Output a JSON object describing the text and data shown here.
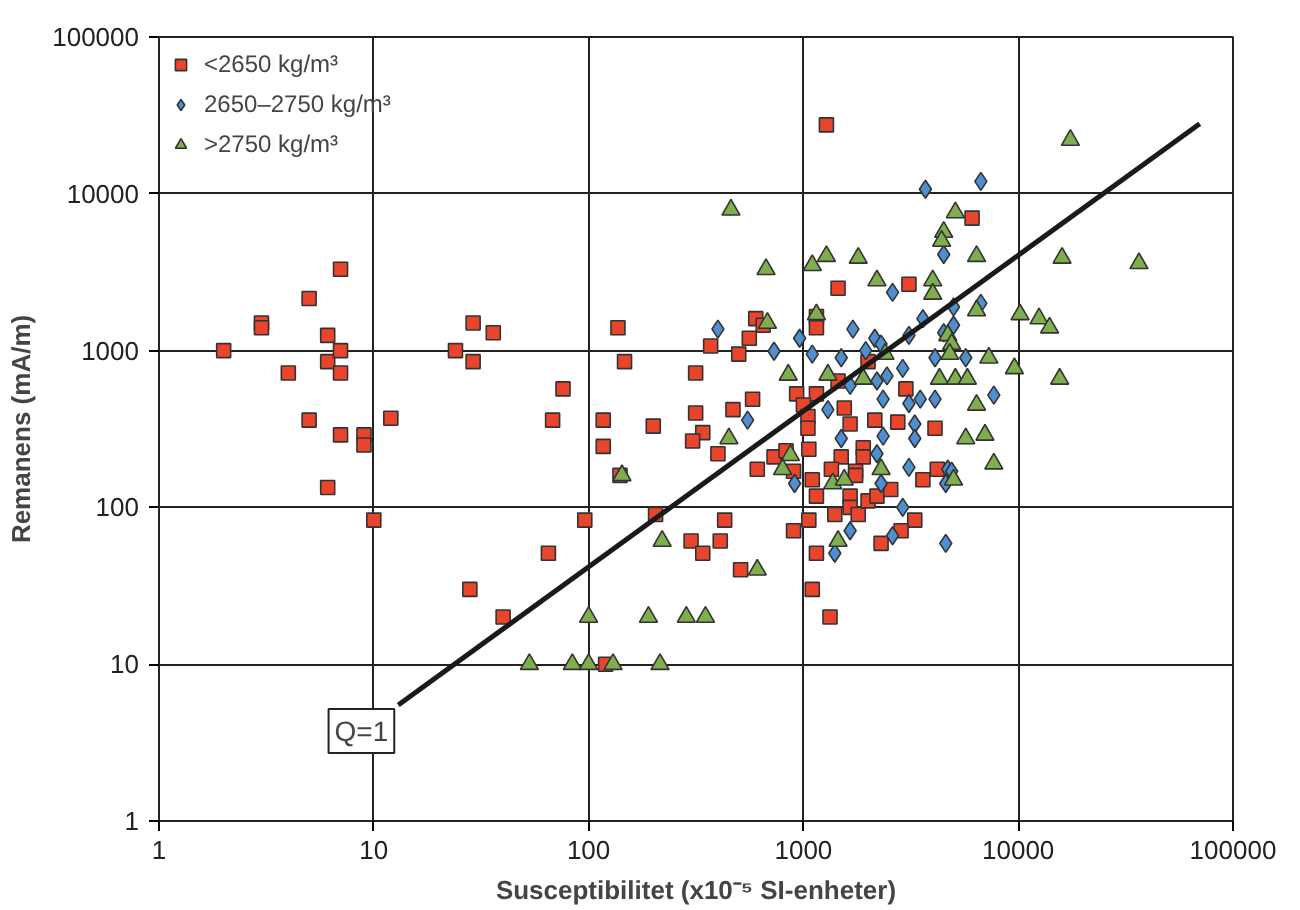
{
  "chart_data": {
    "type": "scatter",
    "xlabel": "Susceptibilitet (x10⁻⁵ SI-enheter)",
    "ylabel": "Remanens (mA/m)",
    "log": "xy",
    "grid": true,
    "legend": "top left",
    "xlim": [
      1,
      100000
    ],
    "ylim": [
      1,
      100000
    ],
    "xticks": [
      1,
      10,
      100,
      1000,
      10000,
      100000
    ],
    "yticks": [
      1,
      10,
      100,
      1000,
      10000,
      100000
    ],
    "annotations": [
      {
        "text": "Q=1",
        "x": 13,
        "y": 5.5
      }
    ],
    "series": [
      {
        "name": "<2650 kg/m³",
        "color": "#e8452c",
        "marker": "square",
        "x": [
          2,
          3,
          3,
          4,
          5,
          6.1,
          6.1,
          7,
          7,
          7,
          5,
          7,
          9,
          9,
          12,
          24,
          29,
          29,
          36,
          76,
          68,
          117,
          117,
          137,
          147,
          6.1,
          10,
          28,
          40,
          65,
          96,
          120,
          140,
          1280,
          6100,
          1450,
          3100,
          600,
          650,
          560,
          370,
          500,
          1150,
          1150,
          2000,
          930,
          1150,
          1450,
          3000,
          580,
          470,
          1000,
          1550,
          315,
          200,
          340,
          1050,
          1050,
          1650,
          2150,
          2750,
          4100,
          305,
          400,
          1060,
          730,
          830,
          1500,
          1900,
          1900,
          610,
          900,
          1350,
          1750,
          4200,
          315,
          1100,
          1750,
          1150,
          1650,
          1650,
          1800,
          1400,
          1060,
          2000,
          2200,
          2550,
          3600,
          3300,
          2850,
          2300,
          1150,
          1100,
          1330,
          900,
          430,
          205,
          300,
          340,
          410,
          510
        ],
        "values": [
          1000,
          1500,
          1400,
          720,
          2150,
          1250,
          850,
          3300,
          1000,
          720,
          360,
          290,
          290,
          250,
          370,
          1000,
          1500,
          850,
          1300,
          570,
          360,
          360,
          245,
          1400,
          850,
          134,
          83,
          30,
          20,
          51,
          83,
          10,
          160,
          27500,
          7000,
          2500,
          2650,
          1600,
          1450,
          1200,
          1070,
          950,
          1650,
          1400,
          850,
          530,
          530,
          640,
          570,
          490,
          420,
          450,
          430,
          400,
          330,
          300,
          380,
          320,
          340,
          360,
          350,
          320,
          265,
          220,
          235,
          210,
          230,
          210,
          240,
          210,
          175,
          170,
          175,
          170,
          175,
          720,
          150,
          160,
          118,
          118,
          100,
          90,
          90,
          83,
          110,
          118,
          130,
          150,
          83,
          71,
          59,
          51,
          30,
          20,
          71,
          83,
          90,
          61,
          51,
          61,
          40
        ]
      },
      {
        "name": "2650–2750 kg/m³",
        "color": "#4f8fd0",
        "marker": "diamond",
        "x": [
          3700,
          6700,
          4500,
          2600,
          6700,
          5000,
          5000,
          3600,
          400,
          730,
          960,
          1100,
          1700,
          2150,
          2300,
          3100,
          4500,
          1500,
          1950,
          4100,
          5700,
          2450,
          1650,
          2200,
          7700,
          2350,
          3100,
          3500,
          4100,
          1300,
          550,
          3300,
          1500,
          2350,
          3300,
          2200,
          3100,
          4700,
          910,
          2300,
          4600,
          4900,
          2900,
          2600,
          4600,
          1650,
          1400,
          2900
        ],
        "values": [
          10700,
          12000,
          4100,
          2350,
          2000,
          1900,
          1450,
          1600,
          1370,
          990,
          1200,
          950,
          1370,
          1200,
          1100,
          1250,
          1300,
          900,
          1000,
          900,
          900,
          690,
          600,
          640,
          520,
          490,
          460,
          490,
          490,
          420,
          360,
          340,
          275,
          285,
          275,
          220,
          180,
          175,
          142,
          142,
          142,
          170,
          100,
          66,
          59,
          71,
          51,
          770
        ]
      },
      {
        "name": ">2750 kg/m³",
        "color": "#7fae4e",
        "marker": "triangle",
        "x": [
          17500,
          460,
          5100,
          4500,
          4400,
          6400,
          16000,
          36500,
          670,
          1100,
          1280,
          1800,
          2200,
          4000,
          4000,
          6400,
          10200,
          12500,
          14000,
          4700,
          680,
          1150,
          4900,
          2400,
          4800,
          7300,
          9600,
          15600,
          850,
          1300,
          1900,
          4300,
          5100,
          5800,
          6400,
          450,
          5700,
          7000,
          870,
          7700,
          800,
          2300,
          1370,
          1550,
          5000,
          1450,
          220,
          610,
          190,
          285,
          350,
          215,
          53,
          84,
          100,
          100,
          130,
          143
        ],
        "values": [
          22000,
          7900,
          7600,
          5700,
          5000,
          4000,
          3900,
          3600,
          3300,
          3500,
          4000,
          3900,
          2800,
          2800,
          2300,
          1800,
          1700,
          1600,
          1400,
          1250,
          1500,
          1700,
          1100,
          950,
          950,
          900,
          770,
          660,
          700,
          700,
          660,
          660,
          660,
          660,
          450,
          275,
          275,
          290,
          215,
          190,
          175,
          175,
          142,
          150,
          150,
          61,
          61,
          40,
          20,
          20,
          20,
          10,
          10,
          10,
          10,
          20,
          10,
          160
        ]
      },
      {
        "type": "line",
        "color": "#1a1a1a",
        "x": [
          13,
          70000
        ],
        "values": [
          5.5,
          28000
        ]
      }
    ]
  }
}
